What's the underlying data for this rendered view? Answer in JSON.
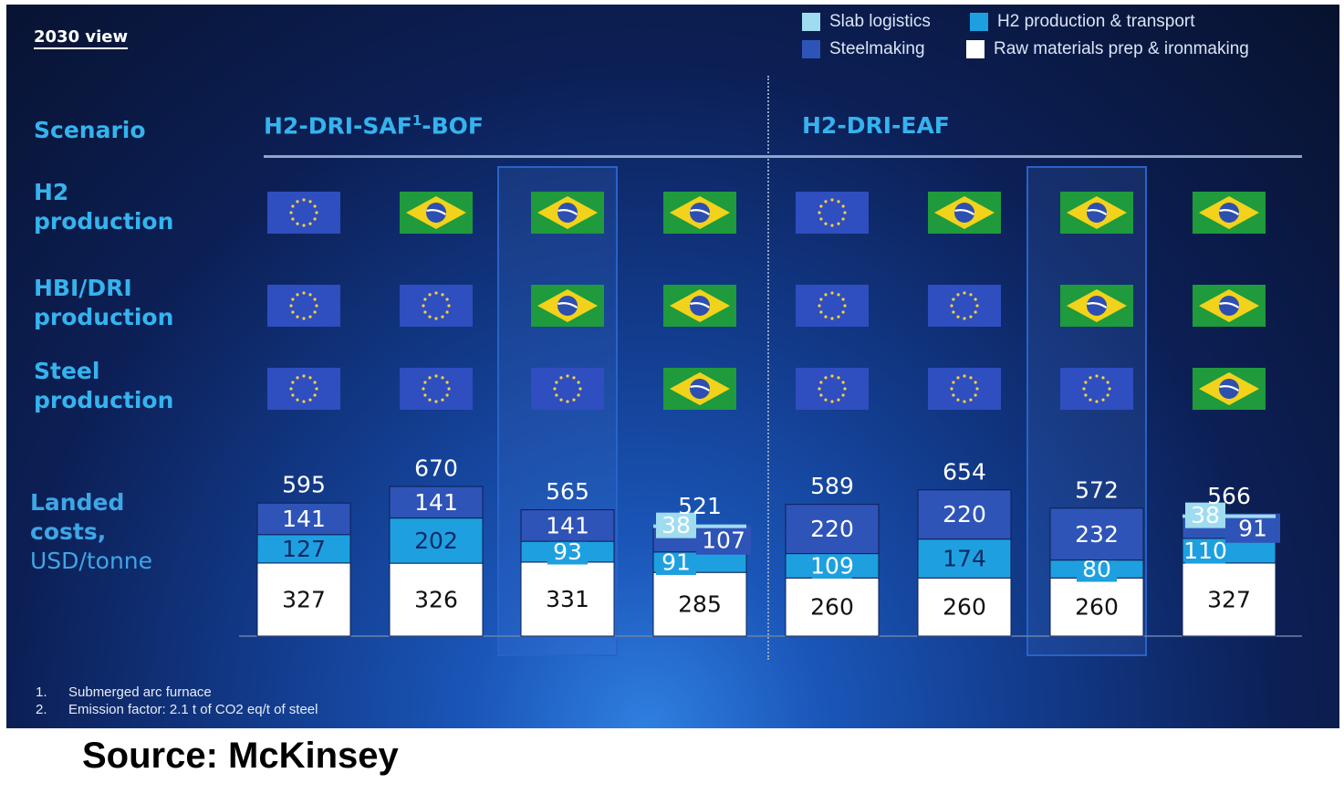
{
  "view_label": "2030 view",
  "legend": [
    {
      "label": "Slab logistics",
      "color": "#9fdcef"
    },
    {
      "label": "H2 production & transport",
      "color": "#1ea0e0"
    },
    {
      "label": "Steelmaking",
      "color": "#2f54b8"
    },
    {
      "label": "Raw materials prep & ironmaking",
      "color": "#ffffff"
    }
  ],
  "row_labels": {
    "scenario": "Scenario",
    "h2": [
      "H2",
      "production"
    ],
    "hbi": [
      "HBI/DRI",
      "production"
    ],
    "steel": [
      "Steel",
      "production"
    ],
    "costs": [
      "Landed",
      "costs,",
      "USD/tonne"
    ]
  },
  "scenarios": [
    {
      "name": "H2-DRI-SAF",
      "sup": "1",
      "suffix": "-BOF"
    },
    {
      "name": "H2-DRI-EAF",
      "sup": "",
      "suffix": ""
    }
  ],
  "icons": {
    "eu": "eu-flag-icon",
    "br": "brazil-flag-icon"
  },
  "colors": {
    "eu_blue": "#2f4ec0",
    "eu_star": "#f3d23a",
    "br_green": "#1f9a3c",
    "br_yellow": "#f2d21b",
    "br_blue": "#2d4fb0"
  },
  "chart_data": {
    "type": "bar",
    "stacked": true,
    "ylabel": "Landed costs, USD/tonne",
    "columns": [
      {
        "scenario": "H2-DRI-SAF1-BOF",
        "h2": "EU",
        "hbi": "EU",
        "steel": "EU",
        "total": 595,
        "raw": 327,
        "h2_transport": 127,
        "steelmaking": 141,
        "slab": null
      },
      {
        "scenario": "H2-DRI-SAF1-BOF",
        "h2": "BR",
        "hbi": "EU",
        "steel": "EU",
        "total": 670,
        "raw": 326,
        "h2_transport": 202,
        "steelmaking": 141,
        "slab": null
      },
      {
        "scenario": "H2-DRI-SAF1-BOF",
        "h2": "BR",
        "hbi": "BR",
        "steel": "EU",
        "total": 565,
        "raw": 331,
        "h2_transport": 93,
        "steelmaking": 141,
        "slab": null,
        "highlight": true
      },
      {
        "scenario": "H2-DRI-SAF1-BOF",
        "h2": "BR",
        "hbi": "BR",
        "steel": "BR",
        "total": 521,
        "raw": 285,
        "h2_transport": 91,
        "steelmaking": 107,
        "slab": 38
      },
      {
        "scenario": "H2-DRI-EAF",
        "h2": "EU",
        "hbi": "EU",
        "steel": "EU",
        "total": 589,
        "raw": 260,
        "h2_transport": 109,
        "steelmaking": 220,
        "slab": null
      },
      {
        "scenario": "H2-DRI-EAF",
        "h2": "BR",
        "hbi": "EU",
        "steel": "EU",
        "total": 654,
        "raw": 260,
        "h2_transport": 174,
        "steelmaking": 220,
        "slab": null
      },
      {
        "scenario": "H2-DRI-EAF",
        "h2": "BR",
        "hbi": "BR",
        "steel": "EU",
        "total": 572,
        "raw": 260,
        "h2_transport": 80,
        "steelmaking": 232,
        "slab": null,
        "highlight": true
      },
      {
        "scenario": "H2-DRI-EAF",
        "h2": "BR",
        "hbi": "BR",
        "steel": "BR",
        "total": 566,
        "raw": 327,
        "h2_transport": 110,
        "steelmaking": 91,
        "slab": 38
      }
    ]
  },
  "footnotes": [
    {
      "num": "1.",
      "text": "Submerged arc furnace"
    },
    {
      "num": "2.",
      "text": "Emission factor: 2.1 t of CO2 eq/t of steel"
    }
  ],
  "source": "Source: McKinsey"
}
